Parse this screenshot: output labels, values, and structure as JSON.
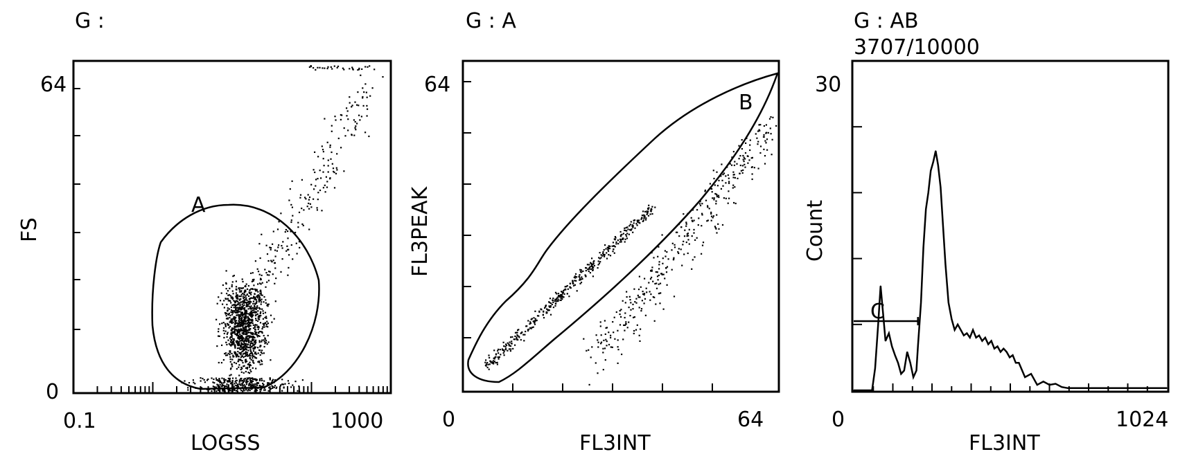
{
  "chart_data": [
    {
      "type": "scatter",
      "title": "G :",
      "xlabel": "LOGSS",
      "ylabel": "FS",
      "x_scale": "log",
      "xlim": [
        0.1,
        1000
      ],
      "ylim": [
        0,
        64
      ],
      "x_tick_labels": [
        "0.1",
        "1000"
      ],
      "y_tick_labels": [
        "0",
        "64"
      ],
      "gate": {
        "label": "A",
        "shape": "ellipse"
      },
      "note": "Dense population centered near LOGSS 10-30, FS 5-25; sparse tail toward upper right"
    },
    {
      "type": "scatter",
      "title": "G : A",
      "xlabel": "FL3INT",
      "ylabel": "FL3PEAK",
      "xlim": [
        0,
        64
      ],
      "ylim": [
        0,
        64
      ],
      "x_tick_labels": [
        "0",
        "64"
      ],
      "y_tick_labels": [
        "64"
      ],
      "gate": {
        "label": "B",
        "shape": "diagonal band"
      },
      "note": "Events concentrated along the diagonal; doublets spread below the diagonal"
    },
    {
      "type": "line",
      "title": "G : AB",
      "subtitle": "3707/10000",
      "xlabel": "FL3INT",
      "ylabel": "Count",
      "xlim": [
        0,
        1024
      ],
      "ylim": [
        0,
        30
      ],
      "x_tick_labels": [
        "0",
        "1024"
      ],
      "y_tick_labels": [
        "30"
      ],
      "marker": {
        "label": "C",
        "range": [
          0,
          210
        ],
        "level": 6.3
      },
      "x": [
        0,
        60,
        70,
        80,
        88,
        96,
        104,
        115,
        125,
        135,
        145,
        155,
        165,
        175,
        185,
        195,
        205,
        210,
        220,
        228,
        236,
        244,
        252,
        260,
        268,
        276,
        284,
        292,
        300,
        310,
        320,
        330,
        340,
        350,
        360,
        370,
        380,
        390,
        400,
        410,
        420,
        430,
        440,
        450,
        460,
        470,
        480,
        490,
        500,
        510,
        520,
        530,
        540,
        560,
        580,
        600,
        620,
        640,
        660,
        680,
        700,
        1024
      ],
      "values": [
        0,
        0,
        2,
        6,
        9.5,
        7,
        4.5,
        5.2,
        4,
        3.2,
        2.5,
        1.5,
        1.8,
        3.5,
        2.5,
        1.2,
        1.8,
        4,
        8,
        13,
        16.5,
        18,
        20,
        20.8,
        21.8,
        20.5,
        18.5,
        15,
        11.5,
        8,
        6.5,
        5.5,
        6,
        5.5,
        5,
        5.2,
        4.8,
        5.5,
        4.8,
        5,
        4.5,
        4.8,
        4.2,
        4.5,
        3.8,
        4,
        3.5,
        3.8,
        3.5,
        3,
        3.2,
        2.5,
        2.5,
        1.2,
        1.5,
        0.5,
        0.8,
        0.5,
        0.6,
        0.3,
        0.2,
        0.2
      ]
    }
  ]
}
